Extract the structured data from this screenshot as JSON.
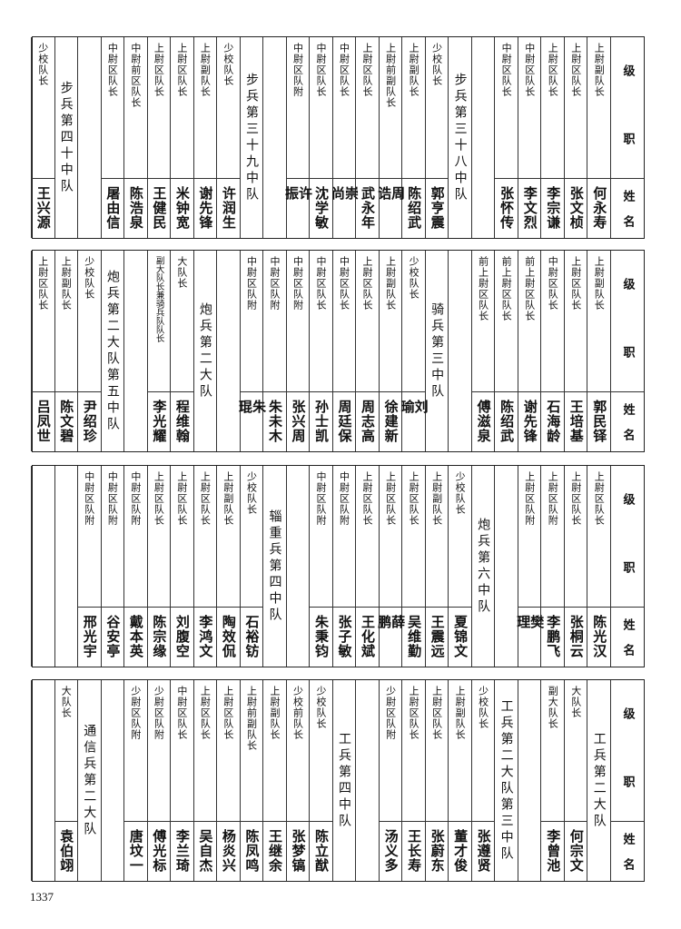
{
  "header": {
    "rank_chars": [
      "级",
      "职"
    ],
    "name_chars": [
      "姓",
      "名"
    ]
  },
  "bands": [
    {
      "columns": [
        {
          "rank": "上尉副队长",
          "name": "何永寿"
        },
        {
          "rank": "上尉区队长",
          "name": "张文桢"
        },
        {
          "rank": "上尉区队长",
          "name": "李宗谦"
        },
        {
          "rank": "中尉区队长",
          "name": "李文烈"
        },
        {
          "rank": "中尉区队长",
          "name": "张怀传"
        },
        {
          "empty": true
        },
        {
          "unit": "步兵第三十八中队"
        },
        {
          "rank": "少校队长",
          "name": "郭亨震"
        },
        {
          "rank": "上尉副队长",
          "name": "陈绍武"
        },
        {
          "rank": "上尉前副队长",
          "name": "周诰"
        },
        {
          "rank": "上尉区队长",
          "name": "武永年"
        },
        {
          "rank": "中尉区队长",
          "name": "崇尚"
        },
        {
          "rank": "中尉区队长",
          "name": "沈学敏"
        },
        {
          "rank": "中尉区队附",
          "name": "许振"
        },
        {
          "empty": true
        },
        {
          "unit": "步兵第三十九中队"
        },
        {
          "rank": "少校队长",
          "name": "许润生"
        },
        {
          "rank": "上尉副队长",
          "name": "谢先锋"
        },
        {
          "rank": "上尉区队长",
          "name": "米钟宽"
        },
        {
          "rank": "上尉区队长",
          "name": "王健民"
        },
        {
          "rank": "中尉前区队长",
          "name": "陈浩泉"
        },
        {
          "rank": "中尉区队长",
          "name": "屠由信"
        },
        {
          "empty": true
        },
        {
          "unit": "步兵第四十中队"
        },
        {
          "rank": "少校队长",
          "name": "王兴源"
        }
      ]
    },
    {
      "columns": [
        {
          "rank": "上尉副队长",
          "name": "郭民铎"
        },
        {
          "rank": "上尉区队长",
          "name": "王培基"
        },
        {
          "rank": "中尉区队长",
          "name": "石海龄"
        },
        {
          "rank": "前上尉区队长",
          "name": "谢先锋"
        },
        {
          "rank": "前上尉区队长",
          "name": "陈绍武"
        },
        {
          "rank": "前上尉区队长",
          "name": "傅滋泉"
        },
        {
          "empty": true
        },
        {
          "unit": "骑兵第三中队"
        },
        {
          "rank": "少校队长",
          "name": "刘瑜"
        },
        {
          "rank": "上尉副队长",
          "name": "徐建新"
        },
        {
          "rank": "上尉区队长",
          "name": "周志高"
        },
        {
          "rank": "中尉区队长",
          "name": "周廷保"
        },
        {
          "rank": "中尉区队长",
          "name": "孙士凯"
        },
        {
          "rank": "中尉区队附",
          "name": "张兴周"
        },
        {
          "rank": "中尉区队附",
          "name": "朱未木"
        },
        {
          "rank": "中尉区队附",
          "name": "朱琨"
        },
        {
          "empty": true
        },
        {
          "unit": "炮兵第二大队"
        },
        {
          "rank": "大队长",
          "name": "程维翰"
        },
        {
          "rank": "副大队长兼骑兵队队长",
          "name": "李光耀"
        },
        {
          "empty": true
        },
        {
          "unit": "炮兵第二大队第五中队"
        },
        {
          "rank": "少校队长",
          "name": "尹绍珍"
        },
        {
          "rank": "上尉副队长",
          "name": "陈文碧"
        },
        {
          "rank": "上尉区队长",
          "name": "吕凤世"
        }
      ]
    },
    {
      "columns": [
        {
          "rank": "上尉区队长",
          "name": "陈光汉"
        },
        {
          "rank": "上尉区队长",
          "name": "张桐云"
        },
        {
          "rank": "上尉区队附",
          "name": "李鹏飞"
        },
        {
          "rank": "上尉区队附",
          "name": "樊理"
        },
        {
          "empty": true
        },
        {
          "unit": "炮兵第六中队"
        },
        {
          "rank": "少校队长",
          "name": "夏锦文"
        },
        {
          "rank": "上尉副队长",
          "name": "王震远"
        },
        {
          "rank": "上尉区队长",
          "name": "吴维勤"
        },
        {
          "rank": "上尉区队长",
          "name": "薛鹏"
        },
        {
          "rank": "上尉区队长",
          "name": "王化斌"
        },
        {
          "rank": "中尉区队附",
          "name": "张子敏"
        },
        {
          "rank": "中尉区队附",
          "name": "朱秉钧"
        },
        {
          "empty": true
        },
        {
          "unit": "辎重兵第四中队"
        },
        {
          "rank": "少校队长",
          "name": "石裕钫"
        },
        {
          "rank": "上尉副队长",
          "name": "陶效侃"
        },
        {
          "rank": "上尉区队长",
          "name": "李鸿文"
        },
        {
          "rank": "上尉区队长",
          "name": "刘腹空"
        },
        {
          "rank": "上尉区队长",
          "name": "陈宗缘"
        },
        {
          "rank": "中尉区队附",
          "name": "戴本英"
        },
        {
          "rank": "中尉区队附",
          "name": "谷安亭"
        },
        {
          "rank": "中尉区队附",
          "name": "邢光宇"
        },
        {
          "empty": true
        },
        {
          "empty": true
        }
      ]
    },
    {
      "columns": [
        {
          "unit": "工兵第二大队"
        },
        {
          "rank": "大队长",
          "name": "何宗文"
        },
        {
          "rank": "副大队长",
          "name": "李曾池"
        },
        {
          "empty": true
        },
        {
          "unit": "工兵第二大队第三中队"
        },
        {
          "rank": "少校队长",
          "name": "张遵贤"
        },
        {
          "rank": "上尉副队长",
          "name": "董才俊"
        },
        {
          "rank": "上尉区队长",
          "name": "张蔚东"
        },
        {
          "rank": "上尉区队长",
          "name": "王长寿"
        },
        {
          "rank": "少尉区队附",
          "name": "汤义多"
        },
        {
          "empty": true
        },
        {
          "unit": "工兵第四中队"
        },
        {
          "rank": "少校队长",
          "name": "陈立猷"
        },
        {
          "rank": "少校前队长",
          "name": "张梦镐"
        },
        {
          "rank": "上尉副队长",
          "name": "王继余"
        },
        {
          "rank": "上尉前副队长",
          "name": "陈凤鸣"
        },
        {
          "rank": "上尉区队长",
          "name": "杨炎兴"
        },
        {
          "rank": "上尉区队长",
          "name": "吴自杰"
        },
        {
          "rank": "中尉区队长",
          "name": "李兰琦"
        },
        {
          "rank": "少尉区队附",
          "name": "傅光标"
        },
        {
          "rank": "少尉区队附",
          "name": "唐坟一"
        },
        {
          "empty": true
        },
        {
          "unit": "通信兵第二大队"
        },
        {
          "rank": "大队长",
          "name": "袁伯翊"
        },
        {
          "empty": true
        }
      ]
    }
  ],
  "page_number": "1337"
}
